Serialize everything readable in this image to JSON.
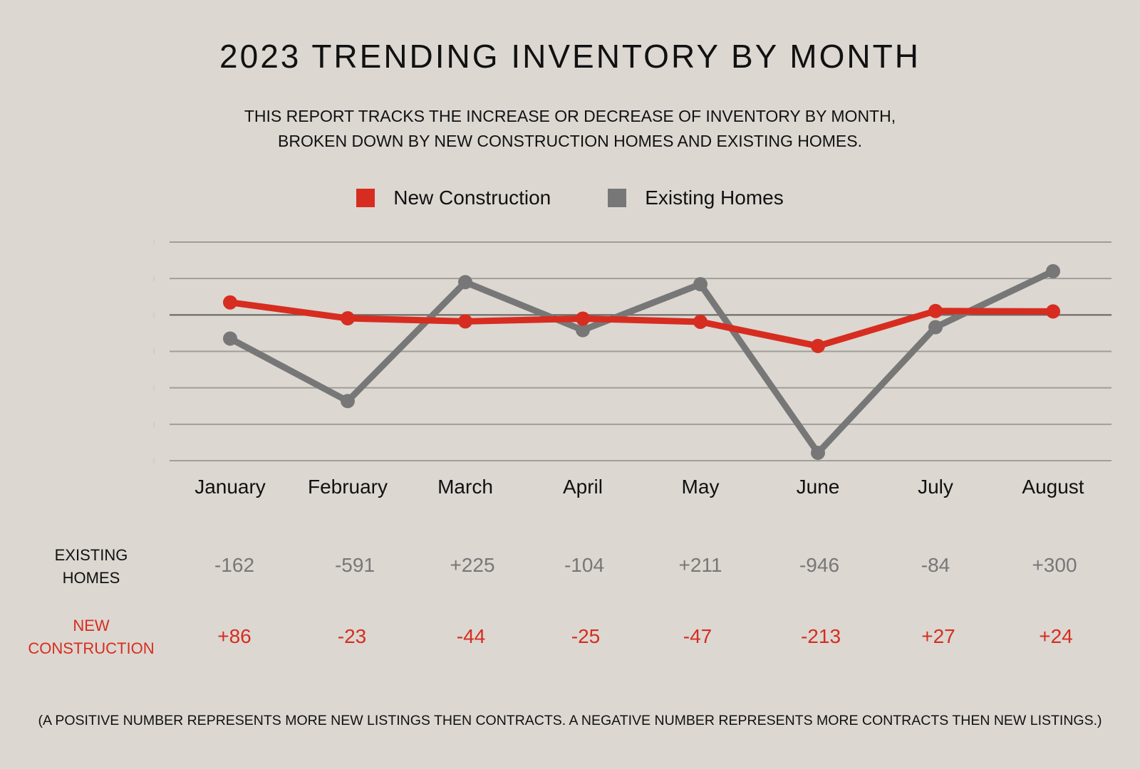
{
  "colors": {
    "background": "#dcd7d1",
    "new_construction": "#d62d20",
    "existing_homes": "#777777",
    "grid": "#a19d98",
    "zero_line": "#6a6763"
  },
  "title": "2023 TRENDING INVENTORY BY MONTH",
  "subtitle": {
    "line1": "THIS REPORT TRACKS THE INCREASE OR DECREASE OF INVENTORY BY MONTH,",
    "line2": "BROKEN DOWN BY NEW CONSTRUCTION HOMES AND EXISTING HOMES."
  },
  "legend": [
    {
      "label": "New Construction"
    },
    {
      "label": "Existing Homes"
    }
  ],
  "table": {
    "existing_label_line1": "EXISTING",
    "existing_label_line2": "HOMES",
    "new_label_line1": "NEW",
    "new_label_line2": "CONSTRUCTION",
    "existing_values": [
      "-162",
      "-591",
      "+225",
      "-104",
      "+211",
      "-946",
      "-84",
      "+300"
    ],
    "new_values": [
      "+86",
      "-23",
      "-44",
      "-25",
      "-47",
      "-213",
      "+27",
      "+24"
    ]
  },
  "footnote": "(A POSITIVE NUMBER REPRESENTS MORE NEW LISTINGS THEN CONTRACTS. A NEGATIVE NUMBER REPRESENTS MORE CONTRACTS THEN NEW LISTINGS.)",
  "chart_data": {
    "type": "line",
    "title": "2023 TRENDING INVENTORY BY MONTH",
    "categories": [
      "January",
      "February",
      "March",
      "April",
      "May",
      "June",
      "July",
      "August"
    ],
    "series": [
      {
        "name": "New Construction",
        "values": [
          86,
          -23,
          -44,
          -25,
          -47,
          -213,
          27,
          24
        ]
      },
      {
        "name": "Existing Homes",
        "values": [
          -162,
          -591,
          225,
          -104,
          211,
          -946,
          -84,
          300
        ]
      }
    ],
    "ylim": [
      -1000,
      500
    ],
    "ygrid_step": 250,
    "grid": true,
    "legend_position": "top-center"
  }
}
